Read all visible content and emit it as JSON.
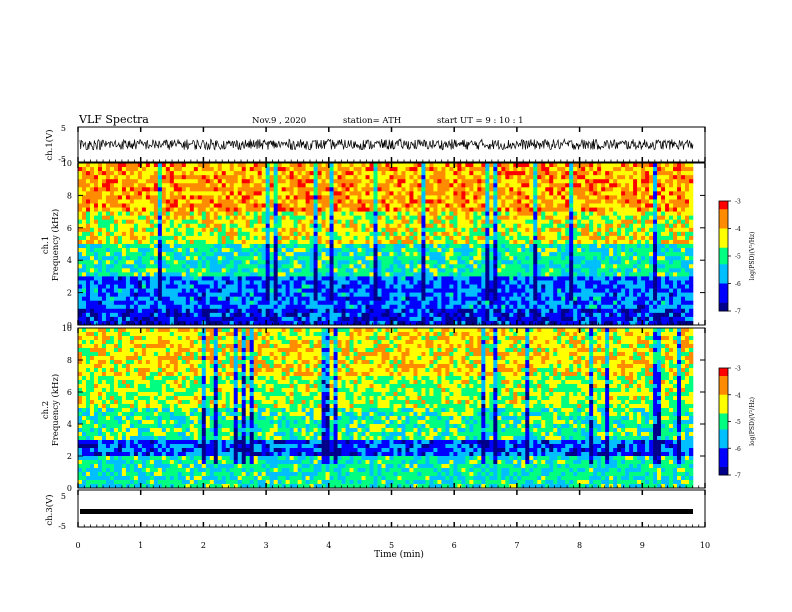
{
  "header": {
    "title": "VLF Spectra",
    "date": "Nov.9 , 2020",
    "station": "station= ATH",
    "start": "start UT = 9 : 10 : 1"
  },
  "colors": {
    "colormap": [
      "#00008b",
      "#0000ff",
      "#00bfff",
      "#00ff80",
      "#ffff00",
      "#ff8c00",
      "#ff0000",
      "#ffffff"
    ],
    "waveform": "#000000",
    "axes": "#000000"
  },
  "chart_data": [
    {
      "type": "line",
      "panel": "ch1-waveform",
      "ylabel": "ch.1(V)",
      "yticks": [
        "5",
        "-5"
      ],
      "ylim": [
        -5,
        5
      ],
      "x_range_min": [
        0,
        9.8
      ],
      "description_values": "dense noisy waveform oscillating roughly between -1.5 and 1.5 V"
    },
    {
      "type": "heatmap",
      "panel": "ch1-spectrogram",
      "ylabel": "ch.1",
      "ylabel2": "Frequency (kHz)",
      "yticks": [
        "0",
        "2",
        "4",
        "6",
        "8",
        "10"
      ],
      "ylim": [
        0,
        10
      ],
      "xlim": [
        0,
        10
      ],
      "colorbar": {
        "label": "log(PSD)(V²/Hz)",
        "ticks": [
          "-3",
          "-4",
          "-5",
          "-6",
          "-7"
        ],
        "range": [
          -7,
          -3
        ]
      },
      "bands": [
        {
          "from_khz": 0,
          "to_khz": 1,
          "level": -6.4
        },
        {
          "from_khz": 1,
          "to_khz": 3,
          "level": -6.0
        },
        {
          "from_khz": 3,
          "to_khz": 5,
          "level": -5.2
        },
        {
          "from_khz": 5,
          "to_khz": 7,
          "level": -4.4
        },
        {
          "from_khz": 7,
          "to_khz": 10,
          "level": -3.8
        }
      ]
    },
    {
      "type": "heatmap",
      "panel": "ch2-spectrogram",
      "ylabel": "ch.2",
      "ylabel2": "Frequency (kHz)",
      "yticks": [
        "0",
        "2",
        "4",
        "6",
        "8",
        "10"
      ],
      "ylim": [
        0,
        10
      ],
      "xlim": [
        0,
        10
      ],
      "colorbar": {
        "label": "log(PSD)(V²/Hz)",
        "ticks": [
          "-3",
          "-4",
          "-5",
          "-6",
          "-7"
        ],
        "range": [
          -7,
          -3
        ]
      },
      "bands": [
        {
          "from_khz": 0,
          "to_khz": 2,
          "level": -5.2
        },
        {
          "from_khz": 2,
          "to_khz": 3,
          "level": -6.2
        },
        {
          "from_khz": 3,
          "to_khz": 5,
          "level": -5.0
        },
        {
          "from_khz": 5,
          "to_khz": 7,
          "level": -4.6
        },
        {
          "from_khz": 7,
          "to_khz": 10,
          "level": -4.2
        }
      ]
    },
    {
      "type": "line",
      "panel": "ch3-waveform",
      "ylabel": "ch.3(V)",
      "yticks": [
        "5",
        "0",
        "-5"
      ],
      "ylim": [
        -5,
        5
      ],
      "x_range_min": [
        0,
        9.8
      ],
      "description_values": "flat thick trace near -1 V"
    }
  ],
  "xaxis": {
    "label": "Time (min)",
    "ticks": [
      "0",
      "1",
      "2",
      "3",
      "4",
      "5",
      "6",
      "7",
      "8",
      "9",
      "10"
    ],
    "range": [
      0,
      10
    ]
  }
}
